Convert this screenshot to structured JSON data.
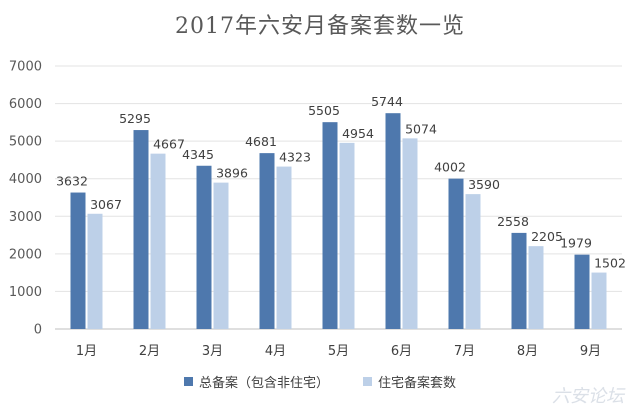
{
  "chart_data": {
    "type": "bar",
    "title": "2017年六安月备案套数一览",
    "categories": [
      "1月",
      "2月",
      "3月",
      "4月",
      "5月",
      "6月",
      "7月",
      "8月",
      "9月"
    ],
    "series": [
      {
        "name": "总备案（包含非住宅）",
        "color": "#4e78ad",
        "values": [
          3632,
          5295,
          4345,
          4681,
          5505,
          5744,
          4002,
          2558,
          1979
        ]
      },
      {
        "name": "住宅备案套数",
        "color": "#bdd0e8",
        "values": [
          3067,
          4667,
          3896,
          4323,
          4954,
          5074,
          3590,
          2205,
          1502
        ]
      }
    ],
    "ylim": [
      0,
      7000
    ],
    "yticks": [
      0,
      1000,
      2000,
      3000,
      4000,
      5000,
      6000,
      7000
    ],
    "grid": true,
    "legend_position": "bottom"
  },
  "watermark": "六安论坛"
}
